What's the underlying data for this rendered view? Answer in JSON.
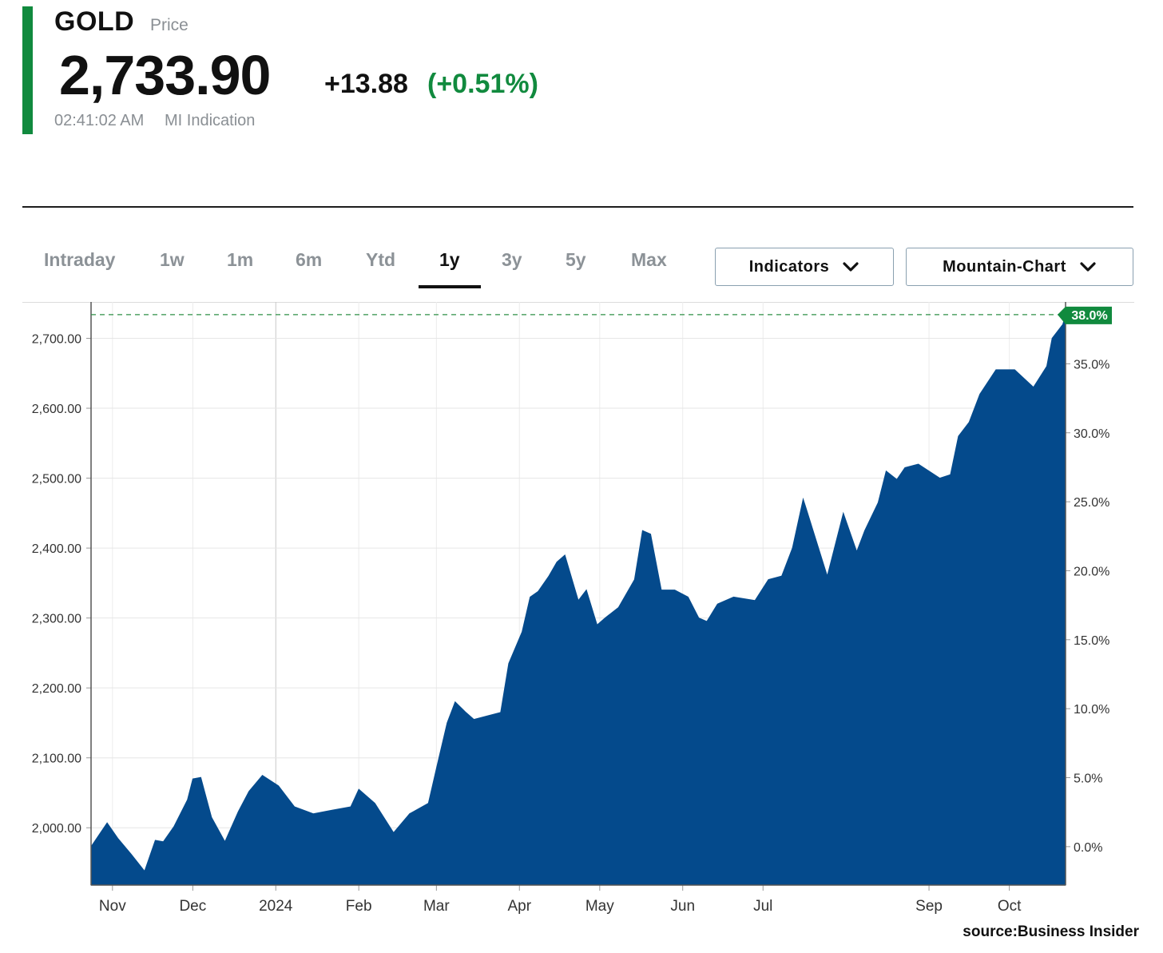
{
  "header": {
    "symbol": "GOLD",
    "symbol_sub": "Price",
    "price": "2,733.90",
    "change_abs": "+13.88",
    "change_pct": "(+0.51%)",
    "time": "02:41:02 AM",
    "indication": "MI Indication"
  },
  "tabs": [
    {
      "label": "Intraday"
    },
    {
      "label": "1w"
    },
    {
      "label": "1m"
    },
    {
      "label": "6m"
    },
    {
      "label": "Ytd"
    },
    {
      "label": "1y",
      "active": true
    },
    {
      "label": "3y"
    },
    {
      "label": "5y"
    },
    {
      "label": "Max"
    }
  ],
  "controls": {
    "indicators_label": "Indicators",
    "chart_type_label": "Mountain-Chart"
  },
  "colors": {
    "accent": "#118a3e",
    "area_fill": "#044a8c",
    "reference_line": "#2f8f46"
  },
  "source": "source:Business Insider",
  "chart_data": {
    "type": "area",
    "x_tick_labels": [
      "Nov",
      "Dec",
      "2024",
      "Feb",
      "Mar",
      "Apr",
      "May",
      "Jun",
      "Jul",
      "Sep",
      "Oct"
    ],
    "x_range": [
      "2023-10-24",
      "2024-10-22"
    ],
    "y_left_ticks": [
      "2,000.00",
      "2,100.00",
      "2,200.00",
      "2,300.00",
      "2,400.00",
      "2,500.00",
      "2,600.00",
      "2,700.00"
    ],
    "y_right_ticks": [
      "0.0%",
      "5.0%",
      "10.0%",
      "15.0%",
      "20.0%",
      "25.0%",
      "30.0%",
      "35.0%"
    ],
    "ylim": [
      1918,
      2752
    ],
    "grid": true,
    "reference_label": "38.0%",
    "reference_value": 2733.9,
    "series": [
      {
        "x": [
          "2023-10-24",
          "2023-10-30",
          "2023-11-03",
          "2023-11-08",
          "2023-11-13",
          "2023-11-17",
          "2023-11-20",
          "2023-11-24",
          "2023-11-29",
          "2023-12-01",
          "2023-12-04",
          "2023-12-08",
          "2023-12-13",
          "2023-12-18",
          "2023-12-22",
          "2023-12-27",
          "2024-01-02",
          "2024-01-08",
          "2024-01-15",
          "2024-01-22",
          "2024-01-29",
          "2024-02-01",
          "2024-02-07",
          "2024-02-14",
          "2024-02-20",
          "2024-02-27",
          "2024-03-01",
          "2024-03-05",
          "2024-03-08",
          "2024-03-12",
          "2024-03-15",
          "2024-03-20",
          "2024-03-25",
          "2024-03-28",
          "2024-04-02",
          "2024-04-05",
          "2024-04-08",
          "2024-04-12",
          "2024-04-15",
          "2024-04-18",
          "2024-04-23",
          "2024-04-26",
          "2024-04-30",
          "2024-05-03",
          "2024-05-08",
          "2024-05-14",
          "2024-05-17",
          "2024-05-20",
          "2024-05-24",
          "2024-05-29",
          "2024-06-03",
          "2024-06-07",
          "2024-06-10",
          "2024-06-14",
          "2024-06-20",
          "2024-06-28",
          "2024-07-03",
          "2024-07-08",
          "2024-07-12",
          "2024-07-16",
          "2024-07-17",
          "2024-07-25",
          "2024-07-31",
          "2024-08-05",
          "2024-08-08",
          "2024-08-13",
          "2024-08-16",
          "2024-08-20",
          "2024-08-23",
          "2024-08-28",
          "2024-09-05",
          "2024-09-09",
          "2024-09-12",
          "2024-09-16",
          "2024-09-20",
          "2024-09-26",
          "2024-10-03",
          "2024-10-10",
          "2024-10-15",
          "2024-10-17",
          "2024-10-21",
          "2024-10-22"
        ],
        "y": [
          1973,
          2007,
          1985,
          1962,
          1938,
          1982,
          1980,
          2002,
          2040,
          2070,
          2072,
          2015,
          1980,
          2023,
          2052,
          2075,
          2060,
          2030,
          2020,
          2025,
          2030,
          2055,
          2035,
          1993,
          2020,
          2035,
          2085,
          2150,
          2180,
          2165,
          2155,
          2160,
          2165,
          2235,
          2280,
          2330,
          2338,
          2360,
          2380,
          2390,
          2325,
          2340,
          2290,
          2300,
          2315,
          2355,
          2425,
          2420,
          2340,
          2340,
          2330,
          2300,
          2295,
          2320,
          2330,
          2325,
          2355,
          2360,
          2400,
          2470,
          2458,
          2360,
          2450,
          2395,
          2425,
          2465,
          2510,
          2498,
          2515,
          2520,
          2500,
          2505,
          2560,
          2580,
          2620,
          2655,
          2655,
          2630,
          2660,
          2700,
          2720,
          2733.9
        ]
      }
    ]
  }
}
